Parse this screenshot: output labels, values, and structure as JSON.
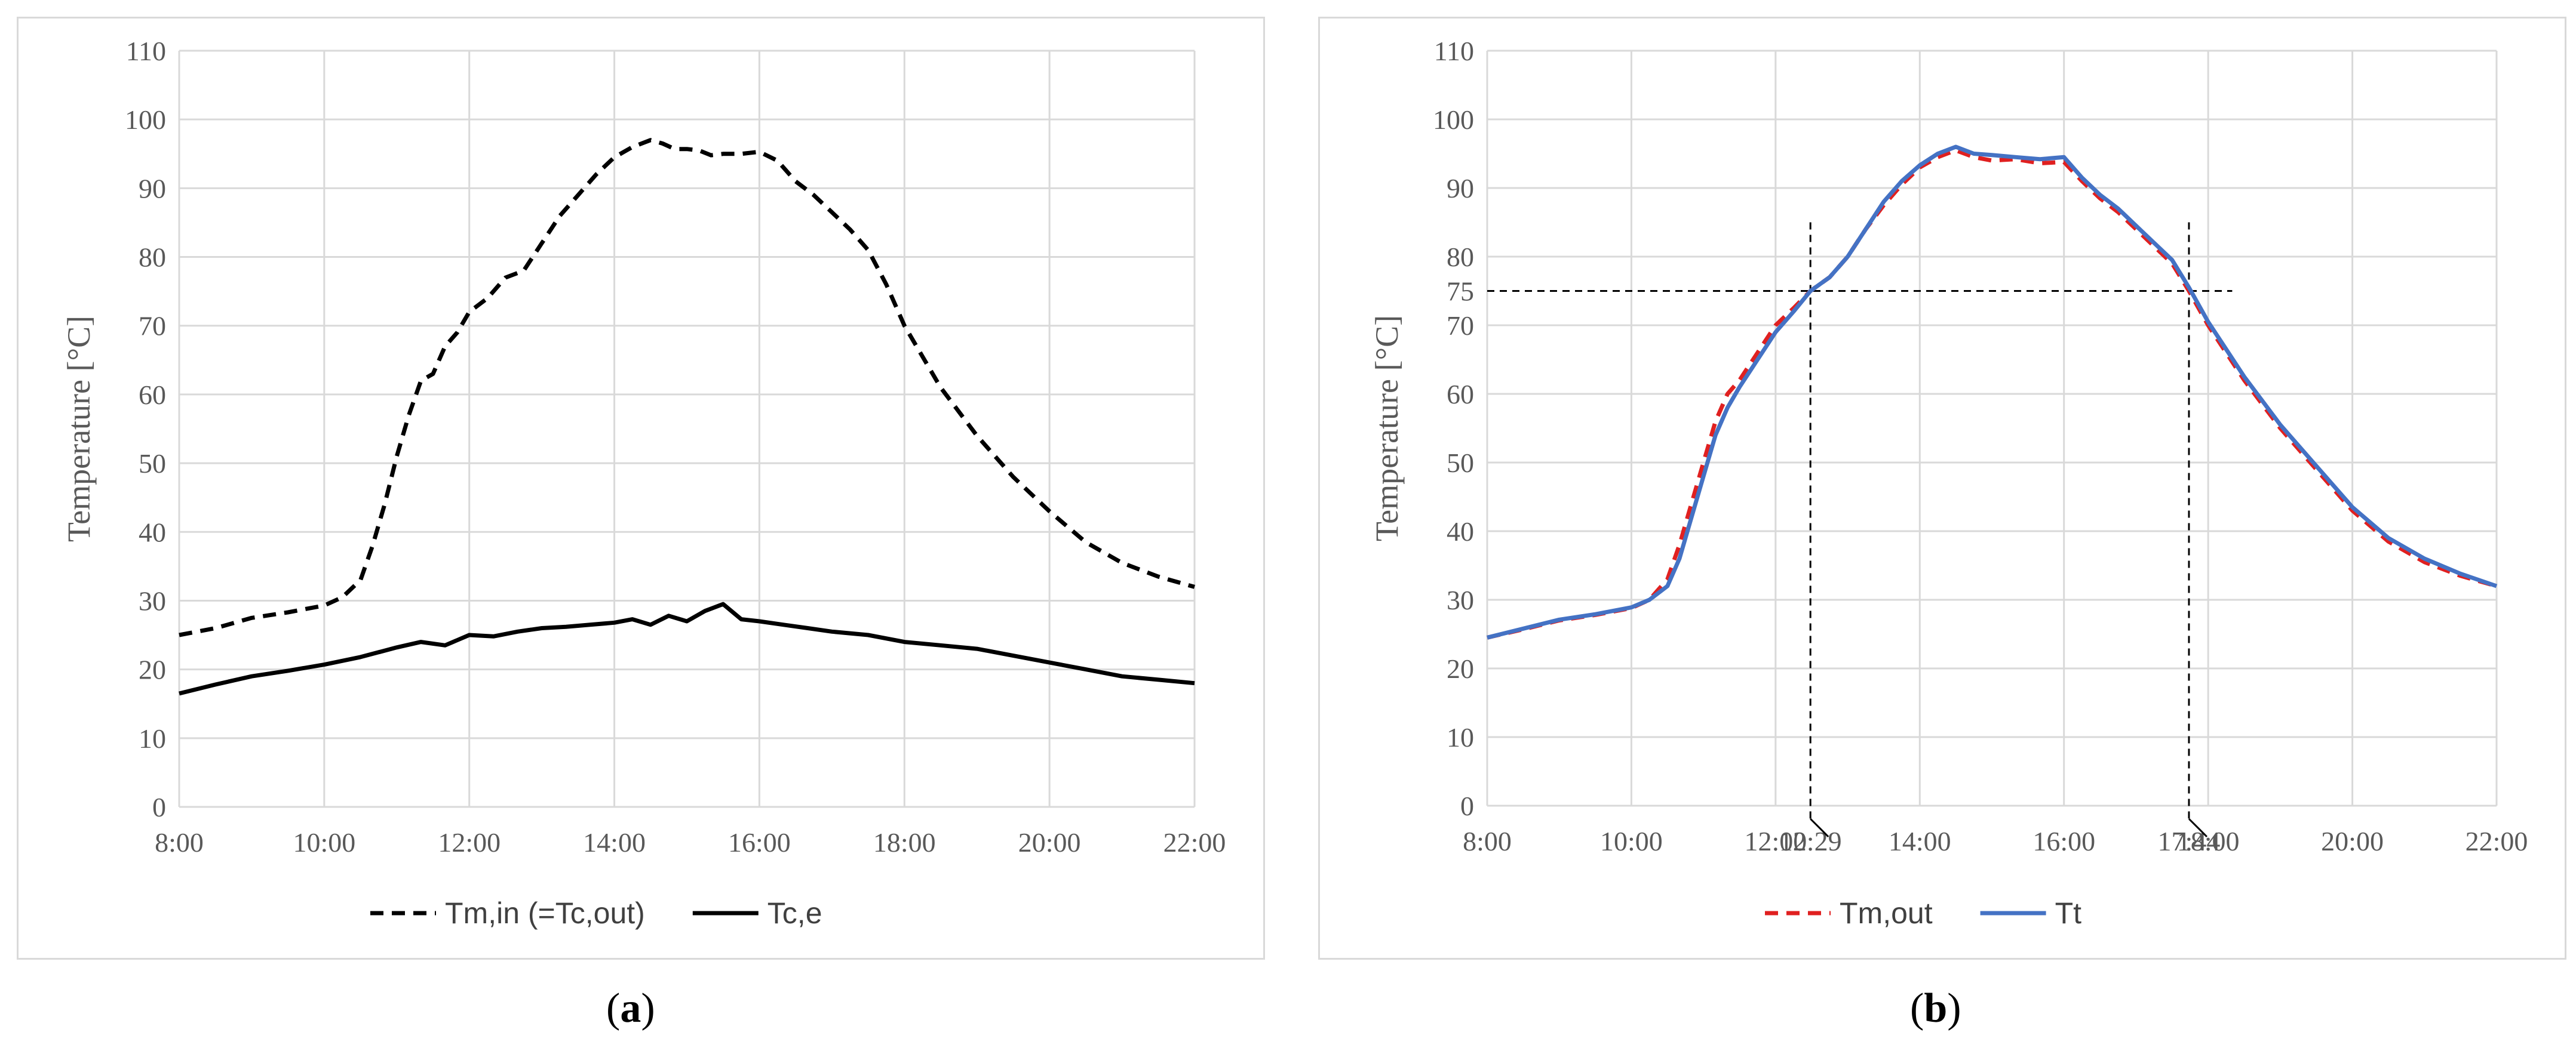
{
  "panel_labels": {
    "a": {
      "open": "(",
      "letter": "a",
      "close": ")"
    },
    "b": {
      "open": "(",
      "letter": "b",
      "close": ")"
    }
  },
  "colors": {
    "grid": "#d9d9d9",
    "black": "#000000",
    "red": "#e02020",
    "blue": "#4472c4"
  },
  "chart_data": [
    {
      "type": "line",
      "title": "",
      "xlabel": "",
      "ylabel": "Temperature [°C]",
      "xlim": [
        "8:00",
        "22:00"
      ],
      "ylim": [
        0,
        110
      ],
      "x_ticks": [
        "8:00",
        "10:00",
        "12:00",
        "14:00",
        "16:00",
        "18:00",
        "20:00",
        "22:00"
      ],
      "y_ticks": [
        0,
        10,
        20,
        30,
        40,
        50,
        60,
        70,
        80,
        90,
        100,
        110
      ],
      "grid": true,
      "legend_position": "bottom",
      "series": [
        {
          "name": "Tm,in (=Tc,out)",
          "style": "dashed",
          "color": "#000000",
          "x": [
            "8:00",
            "8:30",
            "9:00",
            "9:30",
            "10:00",
            "10:15",
            "10:30",
            "10:40",
            "10:50",
            "11:00",
            "11:10",
            "11:20",
            "11:30",
            "11:40",
            "11:50",
            "12:00",
            "12:15",
            "12:30",
            "12:45",
            "13:00",
            "13:15",
            "13:30",
            "13:45",
            "14:00",
            "14:15",
            "14:30",
            "14:40",
            "14:50",
            "15:00",
            "15:10",
            "15:20",
            "15:30",
            "15:45",
            "16:00",
            "16:15",
            "16:30",
            "16:45",
            "17:00",
            "17:15",
            "17:30",
            "17:45",
            "18:00",
            "18:30",
            "19:00",
            "19:30",
            "20:00",
            "20:30",
            "21:00",
            "21:30",
            "22:00"
          ],
          "y": [
            25,
            26,
            27.5,
            28.3,
            29.3,
            30.5,
            33,
            38,
            44,
            51,
            57,
            62,
            63,
            67,
            69,
            72,
            74,
            77,
            78,
            82,
            86,
            89,
            92,
            94.5,
            96,
            97,
            96.5,
            95.7,
            95.7,
            95.5,
            94.8,
            95,
            95,
            95.3,
            94,
            91,
            89,
            86.5,
            84,
            81,
            76,
            70,
            61,
            54,
            48,
            43,
            38.5,
            35.5,
            33.5,
            32
          ]
        },
        {
          "name": "Tc,e",
          "style": "solid",
          "color": "#000000",
          "x": [
            "8:00",
            "8:30",
            "9:00",
            "9:30",
            "10:00",
            "10:30",
            "11:00",
            "11:20",
            "11:40",
            "12:00",
            "12:20",
            "12:40",
            "13:00",
            "13:20",
            "13:40",
            "14:00",
            "14:15",
            "14:30",
            "14:45",
            "15:00",
            "15:15",
            "15:30",
            "15:45",
            "16:00",
            "16:20",
            "16:40",
            "17:00",
            "17:30",
            "18:00",
            "18:30",
            "19:00",
            "19:30",
            "20:00",
            "20:30",
            "21:00",
            "21:30",
            "22:00"
          ],
          "y": [
            16.5,
            17.8,
            19,
            19.8,
            20.7,
            21.8,
            23.2,
            24,
            23.5,
            25,
            24.8,
            25.5,
            26,
            26.2,
            26.5,
            26.8,
            27.3,
            26.5,
            27.8,
            27,
            28.5,
            29.5,
            27.3,
            27,
            26.5,
            26,
            25.5,
            25,
            24,
            23.5,
            23,
            22,
            21,
            20,
            19,
            18.5,
            18
          ]
        }
      ]
    },
    {
      "type": "line",
      "title": "",
      "xlabel": "",
      "ylabel": "Temperature [°C]",
      "xlim": [
        "8:00",
        "22:00"
      ],
      "ylim": [
        0,
        110
      ],
      "x_ticks": [
        "8:00",
        "10:00",
        "12:00",
        "12:29",
        "14:00",
        "16:00",
        "17:44",
        "18:00",
        "20:00",
        "22:00"
      ],
      "y_ticks": [
        0,
        10,
        20,
        30,
        40,
        50,
        60,
        70,
        75,
        80,
        90,
        100,
        110
      ],
      "grid": true,
      "legend_position": "bottom",
      "annotations": {
        "threshold_temperature": 75,
        "crossing_times": [
          "12:29",
          "17:44"
        ]
      },
      "series": [
        {
          "name": "Tm,out",
          "style": "dashed",
          "color": "#e02020",
          "x": [
            "8:00",
            "8:30",
            "9:00",
            "9:30",
            "10:00",
            "10:15",
            "10:30",
            "10:40",
            "10:50",
            "11:00",
            "11:10",
            "11:20",
            "11:30",
            "11:45",
            "12:00",
            "12:15",
            "12:29",
            "12:45",
            "13:00",
            "13:15",
            "13:30",
            "13:45",
            "14:00",
            "14:15",
            "14:30",
            "14:45",
            "15:00",
            "15:20",
            "15:40",
            "16:00",
            "16:15",
            "16:30",
            "16:45",
            "17:00",
            "17:15",
            "17:30",
            "17:44",
            "18:00",
            "18:30",
            "19:00",
            "19:30",
            "20:00",
            "20:30",
            "21:00",
            "21:30",
            "22:00"
          ],
          "y": [
            24.5,
            25.7,
            27,
            27.8,
            28.8,
            30,
            33,
            38,
            44,
            50,
            56,
            60,
            62,
            66,
            70,
            72.5,
            75,
            77,
            80,
            84,
            87.5,
            90.5,
            93,
            94.5,
            95.5,
            94.5,
            94,
            94.2,
            93.6,
            93.8,
            91,
            88.5,
            86.5,
            84,
            81.5,
            79,
            75,
            70,
            62,
            55,
            49,
            43,
            38.5,
            35.5,
            33.5,
            32
          ]
        },
        {
          "name": "Tt",
          "style": "solid",
          "color": "#4472c4",
          "x": [
            "8:00",
            "8:30",
            "9:00",
            "9:30",
            "10:00",
            "10:15",
            "10:30",
            "10:40",
            "10:50",
            "11:00",
            "11:10",
            "11:20",
            "11:30",
            "11:45",
            "12:00",
            "12:15",
            "12:29",
            "12:45",
            "13:00",
            "13:15",
            "13:30",
            "13:45",
            "14:00",
            "14:15",
            "14:30",
            "14:45",
            "15:00",
            "15:20",
            "15:40",
            "16:00",
            "16:15",
            "16:30",
            "16:45",
            "17:00",
            "17:15",
            "17:30",
            "17:44",
            "18:00",
            "18:30",
            "19:00",
            "19:30",
            "20:00",
            "20:30",
            "21:00",
            "21:30",
            "22:00"
          ],
          "y": [
            24.5,
            25.8,
            27.1,
            27.9,
            28.9,
            30,
            32,
            36,
            42,
            48,
            54,
            58,
            61,
            65,
            69,
            72,
            75,
            77,
            80,
            84,
            88,
            91,
            93.3,
            95,
            96,
            95,
            94.8,
            94.5,
            94.2,
            94.5,
            91.5,
            89,
            87,
            84.5,
            82,
            79.5,
            75.5,
            70.5,
            62.5,
            55.5,
            49.5,
            43.5,
            39,
            36,
            33.8,
            32
          ]
        }
      ]
    }
  ]
}
